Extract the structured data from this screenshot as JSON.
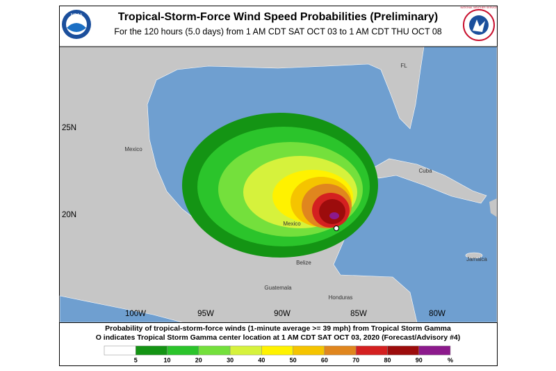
{
  "header": {
    "title": "Tropical-Storm-Force Wind Speed Probabilities (Preliminary)",
    "subtitle": "For the 120 hours (5.0 days) from 1 AM CDT SAT OCT 03 to 1 AM CDT THU OCT 08",
    "left_logo": "NOAA",
    "right_logo": "NATIONAL WEATHER SERVICE"
  },
  "map": {
    "lat_labels": [
      "25N",
      "20N"
    ],
    "lon_labels": [
      "100W",
      "95W",
      "90W",
      "85W",
      "80W"
    ],
    "places": [
      "Mexico",
      "Mexico",
      "Cuba",
      "Belize",
      "Guatemala",
      "Honduras",
      "Jamaica",
      "FL"
    ]
  },
  "footer": {
    "line1": "Probability of tropical-storm-force winds (1-minute average >= 39 mph) from Tropical Storm Gamma",
    "line2": "O indicates Tropical Storm Gamma center location at 1 AM CDT SAT OCT 03, 2020 (Forecast/Advisory #4)"
  },
  "legend": {
    "colors": [
      "#ffffff",
      "#149414",
      "#2bc42b",
      "#74e03c",
      "#d6f23c",
      "#fff200",
      "#f5c400",
      "#e0861e",
      "#d42020",
      "#9c0c0c",
      "#8c1a8c"
    ],
    "labels": [
      5,
      10,
      20,
      30,
      40,
      50,
      60,
      70,
      80,
      90
    ],
    "unit": "%"
  }
}
